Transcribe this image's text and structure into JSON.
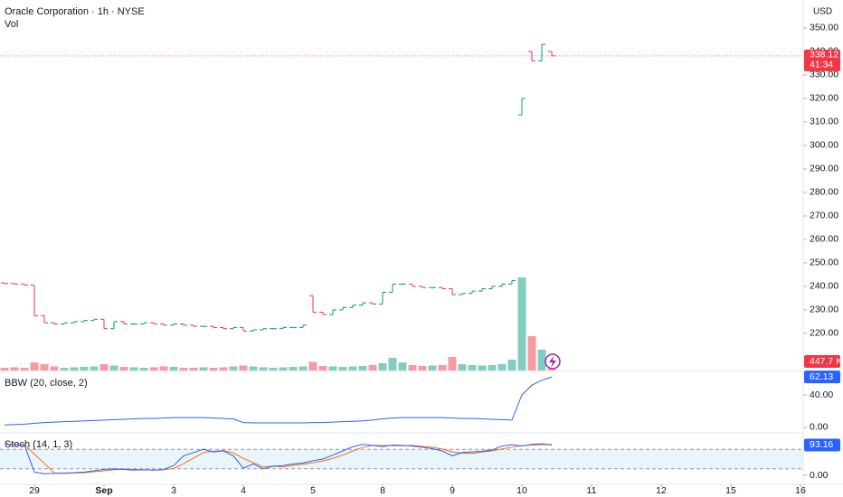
{
  "chart_data": {
    "type": "ohlc",
    "title": "Oracle Corporation · 1h · NYSE",
    "volume_title": "Vol",
    "currency": "USD",
    "up_color": "#089981",
    "down_color": "#f23645",
    "open": [
      241.5,
      241.2,
      241,
      240.5,
      227.5,
      224.5,
      224,
      224.5,
      225,
      225.5,
      226,
      222,
      225,
      224,
      224,
      224.5,
      224,
      223.5,
      224,
      223.5,
      223,
      223,
      222.5,
      222,
      222.5,
      221,
      221.5,
      222,
      222,
      222.5,
      222.5,
      236,
      229,
      228,
      230,
      231,
      232,
      233,
      232.5,
      237.5,
      241,
      241,
      240,
      239.5,
      239.5,
      239,
      236.5,
      237,
      238,
      239,
      240,
      241,
      313,
      340,
      336,
      340
    ],
    "close": [
      241.2,
      241,
      240.5,
      227.5,
      224.5,
      224,
      224.5,
      225,
      225.5,
      226,
      222,
      225,
      224,
      224,
      224.5,
      224,
      223.5,
      224,
      223.5,
      223,
      223,
      222.5,
      222,
      222.5,
      221,
      221.5,
      222,
      222,
      222.5,
      222.5,
      223.5,
      229,
      228,
      230,
      231,
      232,
      233,
      232.5,
      237.5,
      241,
      241,
      240,
      239.5,
      239.5,
      239,
      236.5,
      237,
      238,
      239,
      240,
      241,
      242.5,
      320,
      336,
      343,
      338.12
    ],
    "ylim": [
      204.2,
      361.9
    ],
    "yticks": [
      {
        "value": 350,
        "label": "350.00"
      },
      {
        "value": 340,
        "label": "340.00"
      },
      {
        "value": 330,
        "label": "330.00"
      },
      {
        "value": 320,
        "label": "320.00"
      },
      {
        "value": 310,
        "label": "310.00"
      },
      {
        "value": 300,
        "label": "300.00"
      },
      {
        "value": 290,
        "label": "290.00"
      },
      {
        "value": 280,
        "label": "280.00"
      },
      {
        "value": 270,
        "label": "270.00"
      },
      {
        "value": 260,
        "label": "260.00"
      },
      {
        "value": 250,
        "label": "250.00"
      },
      {
        "value": 240,
        "label": "240.00"
      },
      {
        "value": 230,
        "label": "230.00"
      },
      {
        "value": 220,
        "label": "220.00"
      }
    ],
    "countdown": "41:34",
    "volume": {
      "values": [
        300,
        350,
        300,
        900,
        700,
        450,
        300,
        350,
        400,
        450,
        700,
        550,
        400,
        350,
        300,
        350,
        450,
        400,
        300,
        300,
        350,
        300,
        350,
        450,
        550,
        450,
        350,
        300,
        350,
        400,
        450,
        950,
        500,
        450,
        400,
        450,
        500,
        600,
        800,
        1400,
        900,
        600,
        500,
        550,
        600,
        1500,
        700,
        600,
        550,
        600,
        700,
        1200,
        10300,
        3800,
        2300,
        1500
      ],
      "ylim": [
        0,
        12000
      ],
      "label": "447.7 K"
    },
    "x_labels": [
      {
        "value": 3,
        "label": "29"
      },
      {
        "value": 10,
        "label": "Sep"
      },
      {
        "value": 17,
        "label": "3"
      },
      {
        "value": 24,
        "label": "4"
      },
      {
        "value": 31,
        "label": "5"
      },
      {
        "value": 38,
        "label": "8"
      },
      {
        "value": 45,
        "label": "9"
      },
      {
        "value": 52,
        "label": "10"
      },
      {
        "value": 59,
        "label": "11"
      },
      {
        "value": 66,
        "label": "12"
      },
      {
        "value": 73,
        "label": "15"
      },
      {
        "value": 80,
        "label": "16"
      }
    ],
    "bbw": {
      "name": "BBW (20, close, 2)",
      "color": "#2962ff",
      "values": [
        3,
        3.5,
        4,
        5,
        6,
        6.5,
        7,
        7.5,
        8,
        8.5,
        9,
        9.5,
        10,
        10.5,
        11,
        11,
        11.5,
        12,
        12,
        12,
        12,
        11.5,
        11,
        10.5,
        6,
        5.5,
        5.5,
        5.5,
        5.5,
        5.5,
        5.5,
        6,
        6,
        6.5,
        7,
        7.5,
        8,
        9,
        10.5,
        11.5,
        12,
        12,
        12,
        12,
        12,
        11.5,
        11,
        11,
        10.5,
        10,
        9.5,
        9,
        40,
        52,
        58,
        62.13
      ],
      "ylim": [
        -5.6,
        67.8
      ],
      "yticks": [
        {
          "value": 40,
          "label": "40.00"
        },
        {
          "value": 0,
          "label": "0.00"
        }
      ]
    },
    "stoch": {
      "name": "Stoch (14, 1, 3)",
      "k_color": "#2962ff",
      "d_color": "#ff6d00",
      "band_color": "#e3f2fd",
      "k": [
        95,
        94,
        93,
        10,
        5,
        6,
        7,
        8,
        10,
        14,
        18,
        20,
        18,
        16,
        17,
        16,
        18,
        30,
        60,
        70,
        80,
        72,
        75,
        60,
        22,
        35,
        20,
        28,
        30,
        35,
        38,
        45,
        50,
        62,
        75,
        88,
        95,
        92,
        88,
        93,
        92,
        90,
        86,
        82,
        75,
        60,
        70,
        72,
        74,
        78,
        90,
        94,
        90,
        95,
        97,
        93.16
      ],
      "d": [
        96,
        95,
        94,
        65,
        37,
        7,
        6,
        7,
        8,
        11,
        14,
        17,
        19,
        18,
        17,
        16,
        17,
        21,
        36,
        53,
        70,
        74,
        76,
        69,
        52,
        39,
        26,
        28,
        26,
        31,
        34,
        39,
        44,
        52,
        62,
        75,
        86,
        92,
        92,
        91,
        91,
        92,
        89,
        86,
        81,
        72,
        68,
        67,
        72,
        75,
        81,
        87,
        91,
        93,
        94,
        95
      ],
      "bands": [
        20,
        80
      ],
      "ylim": [
        -25,
        127.8
      ],
      "yticks": [
        {
          "value": 0,
          "label": "0.00"
        }
      ]
    }
  }
}
